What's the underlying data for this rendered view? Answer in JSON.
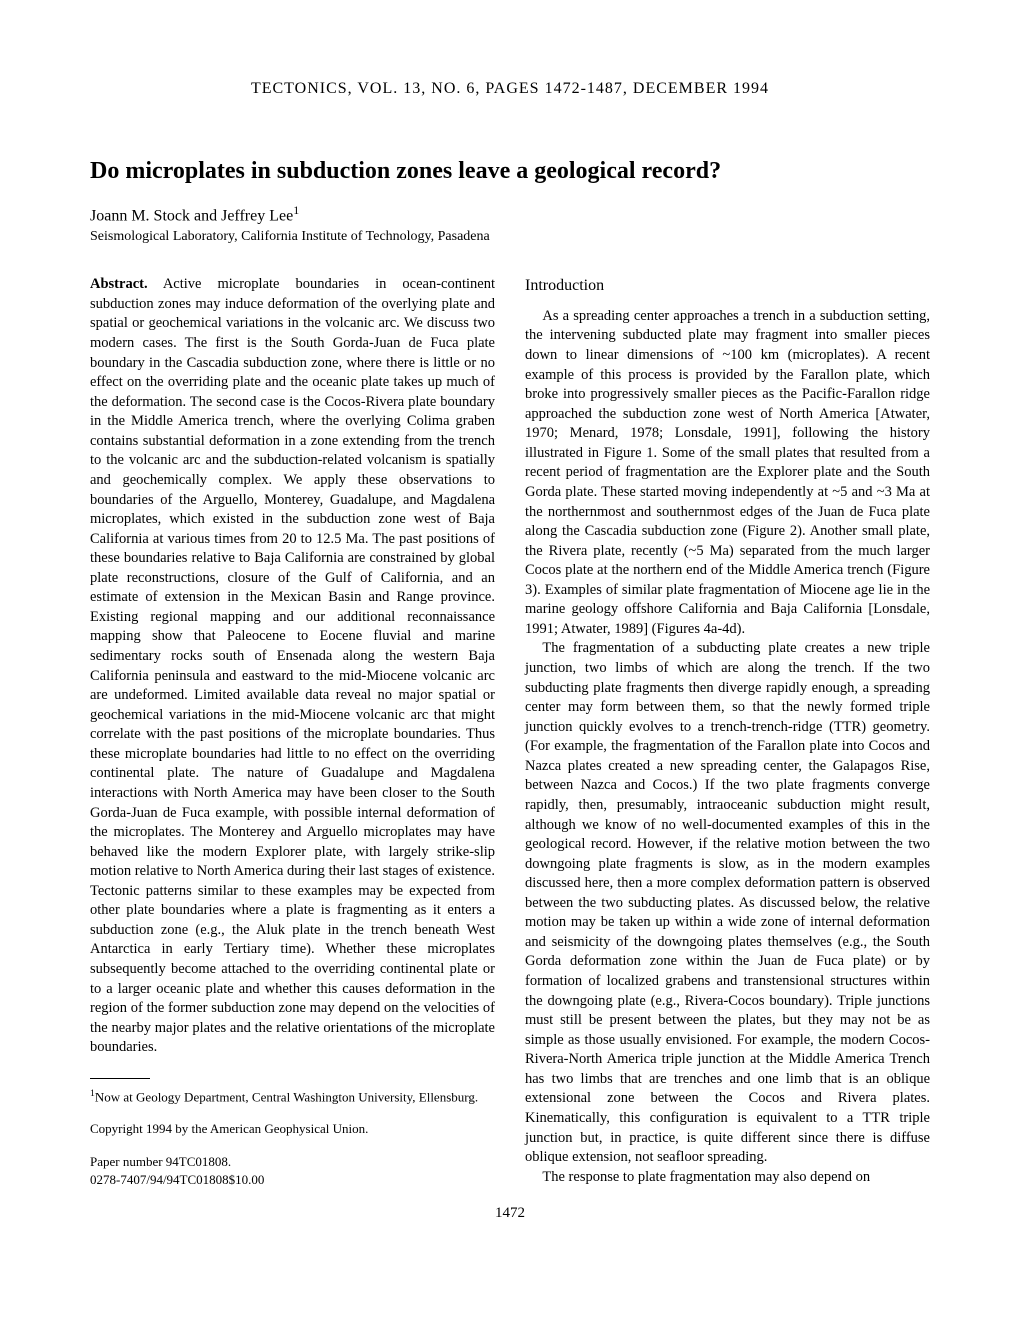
{
  "journal_header": "TECTONICS, VOL. 13, NO. 6, PAGES 1472-1487, DECEMBER 1994",
  "title": "Do microplates in subduction zones leave a geological record?",
  "authors": "Joann M. Stock and Jeffrey Lee",
  "author_sup": "1",
  "affiliation": "Seismological Laboratory, California Institute of Technology, Pasadena",
  "abstract_label": "Abstract.",
  "abstract_text": "Active microplate boundaries in ocean-continent subduction zones may induce deformation of the overlying plate and spatial or geochemical variations in the volcanic arc. We discuss two modern cases. The first is the South Gorda-Juan de Fuca plate boundary in the Cascadia subduction zone, where there is little or no effect on the overriding plate and the oceanic plate takes up much of the deformation. The second case is the Cocos-Rivera plate boundary in the Middle America trench, where the overlying Colima graben contains substantial deformation in a zone extending from the trench to the volcanic arc and the subduction-related volcanism is spatially and geochemically complex. We apply these observations to boundaries of the Arguello, Monterey, Guadalupe, and Magdalena microplates, which existed in the subduction zone west of Baja California at various times from 20 to 12.5 Ma. The past positions of these boundaries relative to Baja California are constrained by global plate reconstructions, closure of the Gulf of California, and an estimate of extension in the Mexican Basin and Range province. Existing regional mapping and our additional reconnaissance mapping show that Paleocene to Eocene fluvial and marine sedimentary rocks south of Ensenada along the western Baja California peninsula and eastward to the mid-Miocene volcanic arc are undeformed. Limited available data reveal no major spatial or geochemical variations in the mid-Miocene volcanic arc that might correlate with the past positions of the microplate boundaries. Thus these microplate boundaries had little to no effect on the overriding continental plate. The nature of Guadalupe and Magdalena interactions with North America may have been closer to the South Gorda-Juan de Fuca example, with possible internal deformation of the microplates. The Monterey and Arguello microplates may have behaved like the modern Explorer plate, with largely strike-slip motion relative to North America during their last stages of existence. Tectonic patterns similar to these examples may be expected from other plate boundaries where a plate is fragmenting as it enters a subduction zone (e.g., the Aluk plate in the trench beneath West Antarctica in early Tertiary time). Whether these microplates subsequently become attached to the overriding continental plate or to a larger oceanic plate and whether this causes deformation in the region of the former subduction zone may depend on the velocities of the nearby major plates and the relative orientations of the microplate boundaries.",
  "intro_heading": "Introduction",
  "intro_p1": "As a spreading center approaches a trench in a subduction setting, the intervening subducted plate may fragment into smaller pieces down to linear dimensions of ~100 km (microplates). A recent example of this process is provided by the Farallon plate, which broke into progressively smaller pieces as the Pacific-Farallon ridge approached the subduction zone west of North America [Atwater, 1970; Menard, 1978; Lonsdale, 1991], following the history illustrated in Figure 1. Some of the small plates that resulted from a recent period of fragmentation are the Explorer plate and the South Gorda plate. These started moving independently at ~5 and ~3 Ma at the northernmost and southernmost edges of the Juan de Fuca plate along the Cascadia subduction zone (Figure 2). Another small plate, the Rivera plate, recently (~5 Ma) separated from the much larger Cocos plate at the northern end of the Middle America trench (Figure 3). Examples of similar plate fragmentation of Miocene age lie in the marine geology offshore California and Baja California [Lonsdale, 1991; Atwater, 1989] (Figures 4a-4d).",
  "intro_p2": "The fragmentation of a subducting plate creates a new triple junction, two limbs of which are along the trench. If the two subducting plate fragments then diverge rapidly enough, a spreading center may form between them, so that the newly formed triple junction quickly evolves to a trench-trench-ridge (TTR) geometry. (For example, the fragmentation of the Farallon plate into Cocos and Nazca plates created a new spreading center, the Galapagos Rise, between Nazca and Cocos.) If the two plate fragments converge rapidly, then, presumably, intraoceanic subduction might result, although we know of no well-documented examples of this in the geological record. However, if the relative motion between the two downgoing plate fragments is slow, as in the modern examples discussed here, then a more complex deformation pattern is observed between the two subducting plates. As discussed below, the relative motion may be taken up within a wide zone of internal deformation and seismicity of the downgoing plates themselves (e.g., the South Gorda deformation zone within the Juan de Fuca plate) or by formation of localized grabens and transtensional structures within the downgoing plate (e.g., Rivera-Cocos boundary). Triple junctions must still be present between the plates, but they may not be as simple as those usually envisioned. For example, the modern Cocos-Rivera-North America triple junction at the Middle America Trench has two limbs that are trenches and one limb that is an oblique extensional zone between the Cocos and Rivera plates. Kinematically, this configuration is equivalent to a TTR triple junction but, in practice, is quite different since there is diffuse oblique extension, not seafloor spreading.",
  "intro_p3": "The response to plate fragmentation may also depend on",
  "footnote_sup": "1",
  "footnote": "Now at Geology Department, Central Washington University, Ellensburg.",
  "copyright": "Copyright 1994 by the American Geophysical Union.",
  "paper_number_line1": "Paper number 94TC01808.",
  "paper_number_line2": "0278-7407/94/94TC01808$10.00",
  "page_number": "1472"
}
